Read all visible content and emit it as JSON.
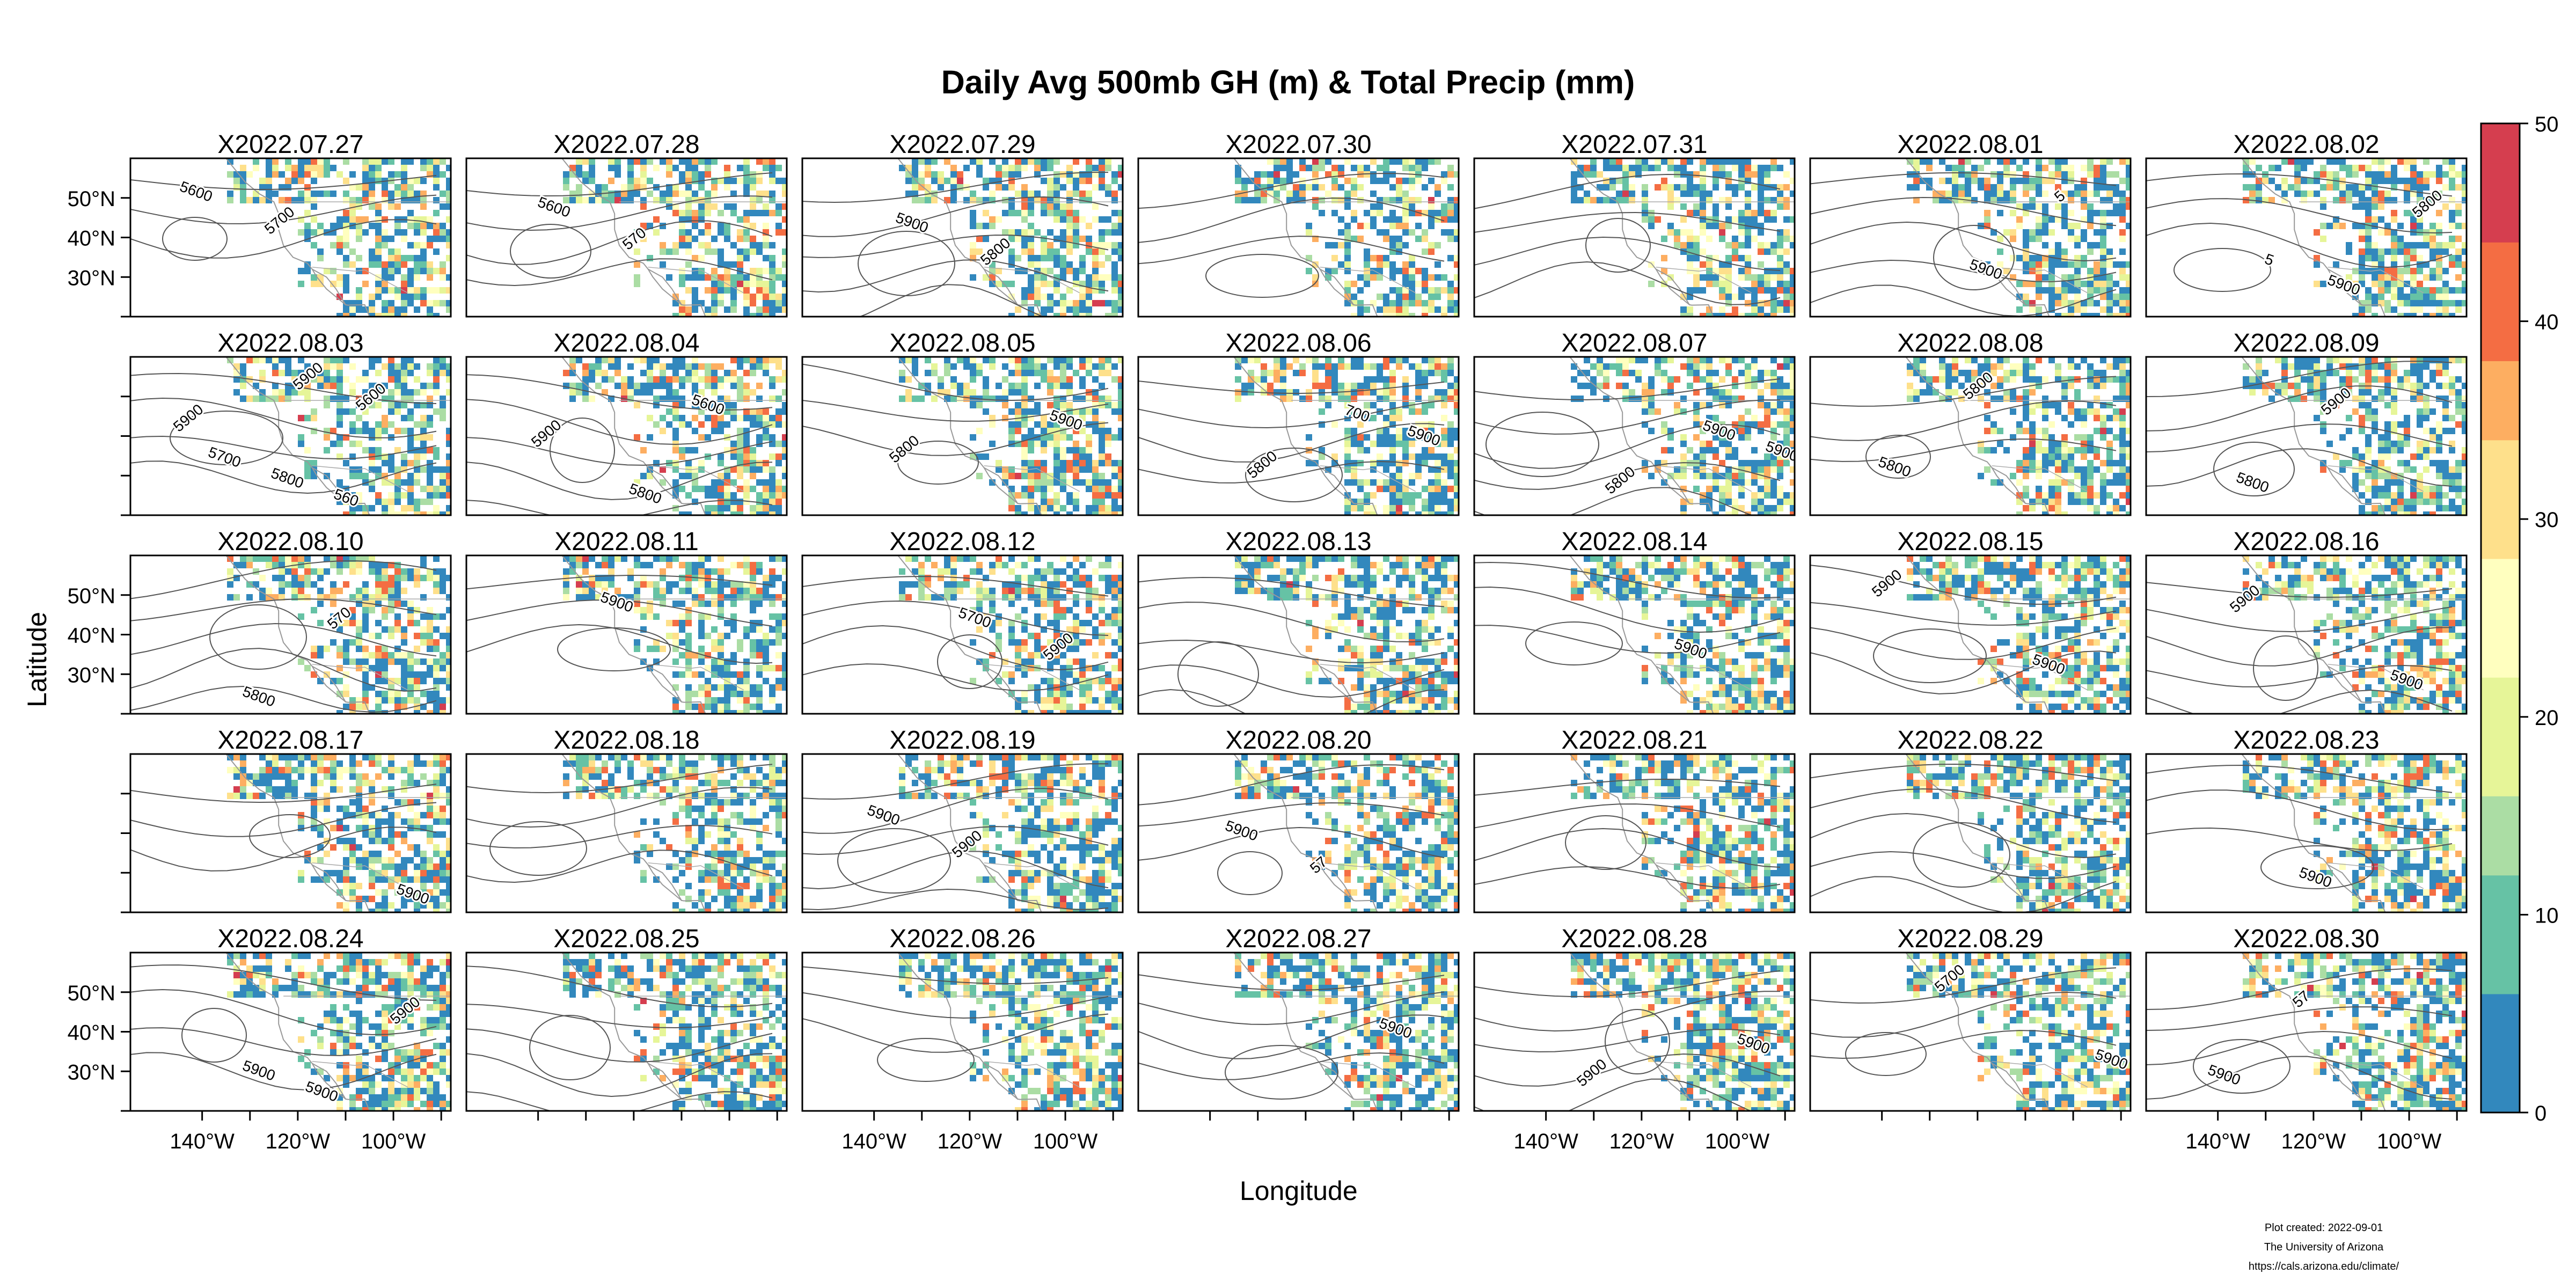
{
  "title": "Daily Avg 500mb GH (m) & Total Precip (mm)",
  "credits": {
    "line1": "Plot created: 2022-09-01",
    "line2": "The University of Arizona",
    "line3": "https://cals.arizona.edu/climate/"
  },
  "chart_data": {
    "type": "heatmap",
    "title": "Daily Avg 500mb GH (m) & Total Precip (mm)",
    "xlabel": "Longitude",
    "ylabel": "Latitude",
    "x_ticks": [
      "140°W",
      "120°W",
      "100°W"
    ],
    "y_ticks": [
      "50°N",
      "40°N",
      "30°N"
    ],
    "x_tick_values": [
      -140,
      -120,
      -100
    ],
    "y_tick_values": [
      50,
      40,
      30
    ],
    "xlim": [
      -155,
      -88
    ],
    "ylim": [
      20,
      60
    ],
    "grid": false,
    "layout": {
      "rows": 5,
      "cols": 7
    },
    "panels": [
      {
        "label": "X2022.07.27",
        "contours": [
          "5600",
          "5700"
        ]
      },
      {
        "label": "X2022.07.28",
        "contours": [
          "5600",
          "570"
        ]
      },
      {
        "label": "X2022.07.29",
        "contours": [
          "5900",
          "5800"
        ]
      },
      {
        "label": "X2022.07.30",
        "contours": []
      },
      {
        "label": "X2022.07.31",
        "contours": []
      },
      {
        "label": "X2022.08.01",
        "contours": [
          "5900",
          "5"
        ]
      },
      {
        "label": "X2022.08.02",
        "contours": [
          "5900",
          "5800",
          "5"
        ]
      },
      {
        "label": "X2022.08.03",
        "contours": [
          "560",
          "5900",
          "5800",
          "5600",
          "5700",
          "5900"
        ]
      },
      {
        "label": "X2022.08.04",
        "contours": [
          "5600",
          "5900",
          "5800"
        ]
      },
      {
        "label": "X2022.08.05",
        "contours": [
          "5900",
          "5800"
        ]
      },
      {
        "label": "X2022.08.06",
        "contours": [
          "5900",
          "5800",
          "700"
        ]
      },
      {
        "label": "X2022.08.07",
        "contours": [
          "5900",
          "5800",
          "5900"
        ]
      },
      {
        "label": "X2022.08.08",
        "contours": [
          "5800",
          "5800"
        ]
      },
      {
        "label": "X2022.08.09",
        "contours": [
          "5800",
          "5900"
        ]
      },
      {
        "label": "X2022.08.10",
        "contours": [
          "5800",
          "570"
        ]
      },
      {
        "label": "X2022.08.11",
        "contours": [
          "5900"
        ]
      },
      {
        "label": "X2022.08.12",
        "contours": [
          "5700",
          "5900"
        ]
      },
      {
        "label": "X2022.08.13",
        "contours": []
      },
      {
        "label": "X2022.08.14",
        "contours": [
          "5900"
        ]
      },
      {
        "label": "X2022.08.15",
        "contours": [
          "5900",
          "5900"
        ]
      },
      {
        "label": "X2022.08.16",
        "contours": [
          "5900",
          "5900"
        ]
      },
      {
        "label": "X2022.08.17",
        "contours": [
          "5900"
        ]
      },
      {
        "label": "X2022.08.18",
        "contours": []
      },
      {
        "label": "X2022.08.19",
        "contours": [
          "5900",
          "5900"
        ]
      },
      {
        "label": "X2022.08.20",
        "contours": [
          "5900",
          "57"
        ]
      },
      {
        "label": "X2022.08.21",
        "contours": []
      },
      {
        "label": "X2022.08.22",
        "contours": []
      },
      {
        "label": "X2022.08.23",
        "contours": [
          "5900"
        ]
      },
      {
        "label": "X2022.08.24",
        "contours": [
          "5900",
          "5900",
          "5900"
        ]
      },
      {
        "label": "X2022.08.25",
        "contours": []
      },
      {
        "label": "X2022.08.26",
        "contours": []
      },
      {
        "label": "X2022.08.27",
        "contours": [
          "5900"
        ]
      },
      {
        "label": "X2022.08.28",
        "contours": [
          "5900",
          "5900"
        ]
      },
      {
        "label": "X2022.08.29",
        "contours": [
          "5900",
          "5700"
        ]
      },
      {
        "label": "X2022.08.30",
        "contours": [
          "5900",
          "57"
        ]
      }
    ],
    "colorbar": {
      "label_ticks": [
        "0",
        "10",
        "20",
        "30",
        "40",
        "50"
      ],
      "tick_values": [
        0,
        10,
        20,
        30,
        40,
        50
      ],
      "range": [
        0,
        50
      ],
      "colors": [
        "#3288bd",
        "#66c2a5",
        "#abdda4",
        "#e6f598",
        "#ffffbf",
        "#fee08b",
        "#fdae61",
        "#f46d43",
        "#d53e4f"
      ]
    }
  }
}
